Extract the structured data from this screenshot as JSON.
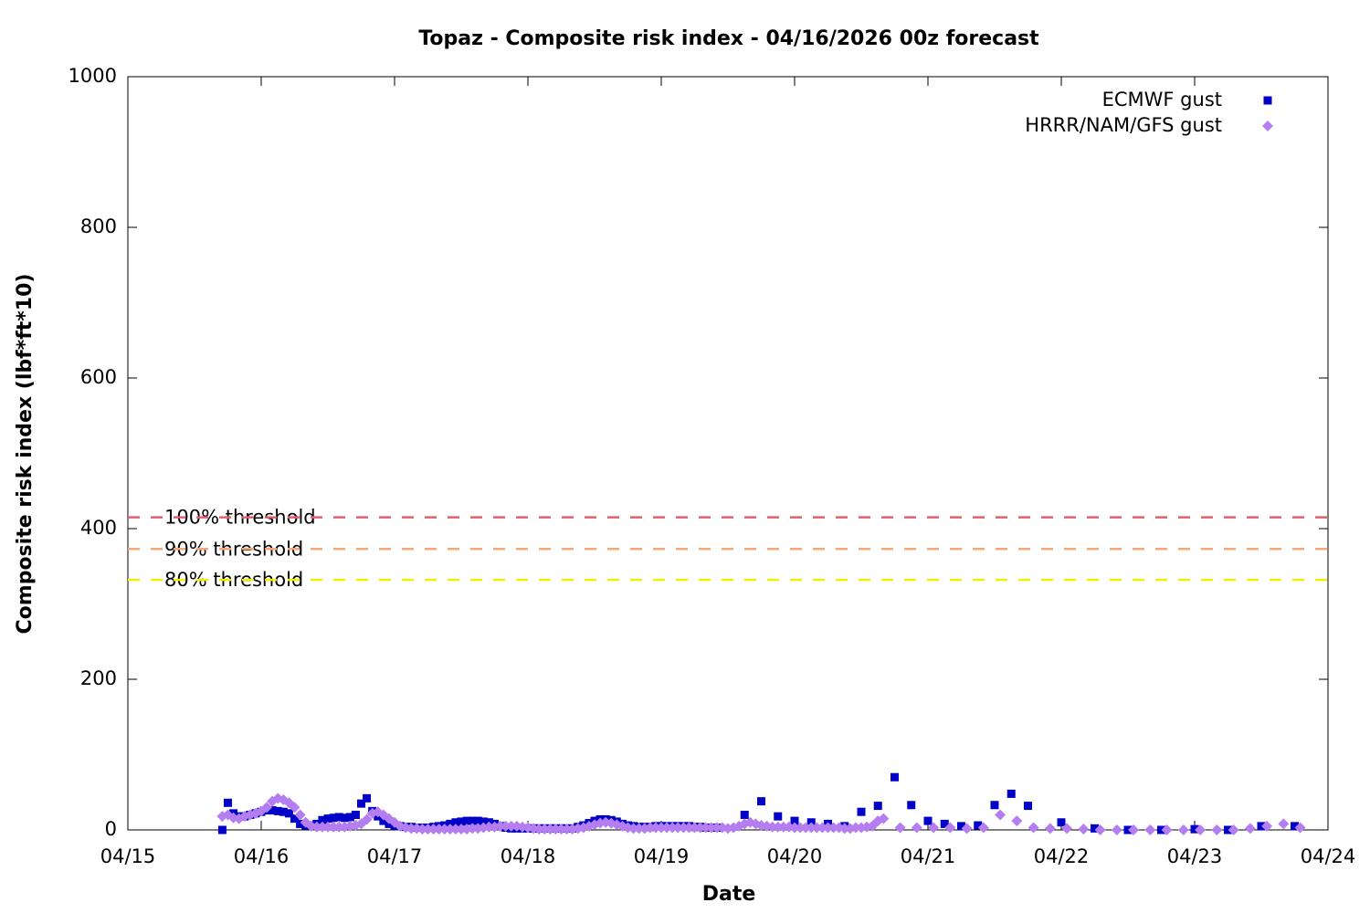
{
  "chart_data": {
    "type": "scatter",
    "title": "Topaz - Composite risk index - 04/16/2026 00z forecast",
    "x_label": "Date",
    "y_label": "Composite risk index (lbf*ft*10)",
    "xlim": [
      0,
      216
    ],
    "xticks": [
      {
        "value": 0,
        "label": "04/15"
      },
      {
        "value": 24,
        "label": "04/16"
      },
      {
        "value": 48,
        "label": "04/17"
      },
      {
        "value": 72,
        "label": "04/18"
      },
      {
        "value": 96,
        "label": "04/19"
      },
      {
        "value": 120,
        "label": "04/20"
      },
      {
        "value": 144,
        "label": "04/21"
      },
      {
        "value": 168,
        "label": "04/22"
      },
      {
        "value": 192,
        "label": "04/23"
      },
      {
        "value": 216,
        "label": "04/24"
      }
    ],
    "ylim": [
      0,
      1000
    ],
    "yticks": [
      0,
      200,
      400,
      600,
      800,
      1000
    ],
    "grid": false,
    "legend": "top-right",
    "thresholds": [
      {
        "label": "100% threshold",
        "value": 415,
        "color": "#e06070"
      },
      {
        "label": "90% threshold",
        "value": 373,
        "color": "#f4a878"
      },
      {
        "label": "80% threshold",
        "value": 332,
        "color": "#f0f000"
      }
    ],
    "series": [
      {
        "name": "ECMWF gust",
        "color": "#0000c8",
        "marker": "square",
        "x": [
          17,
          18,
          19,
          20,
          21,
          22,
          23,
          24,
          25,
          26,
          27,
          28,
          29,
          30,
          31,
          32,
          33,
          34,
          35,
          36,
          37,
          38,
          39,
          40,
          41,
          42,
          43,
          44,
          45,
          46,
          47,
          48,
          49,
          50,
          51,
          52,
          53,
          54,
          55,
          56,
          57,
          58,
          59,
          60,
          61,
          62,
          63,
          64,
          65,
          66,
          67,
          68,
          69,
          70,
          71,
          72,
          73,
          74,
          75,
          76,
          77,
          78,
          79,
          80,
          81,
          82,
          83,
          84,
          85,
          86,
          87,
          88,
          89,
          90,
          91,
          92,
          93,
          94,
          95,
          96,
          97,
          98,
          99,
          100,
          101,
          102,
          103,
          104,
          105,
          106,
          111,
          114,
          117,
          120,
          123,
          126,
          129,
          132,
          135,
          138,
          141,
          144,
          147,
          150,
          153,
          156,
          159,
          162,
          168,
          174,
          180,
          186,
          192,
          198,
          204,
          210
        ],
        "values": [
          0,
          36,
          22,
          18,
          18,
          20,
          22,
          24,
          26,
          26,
          25,
          24,
          22,
          15,
          8,
          6,
          6,
          8,
          13,
          15,
          16,
          17,
          16,
          17,
          20,
          35,
          42,
          25,
          18,
          12,
          8,
          6,
          5,
          4,
          4,
          3,
          3,
          3,
          4,
          5,
          6,
          8,
          10,
          11,
          12,
          12,
          12,
          11,
          10,
          8,
          5,
          3,
          2,
          2,
          2,
          2,
          2,
          2,
          2,
          2,
          2,
          2,
          2,
          2,
          4,
          6,
          9,
          12,
          14,
          14,
          13,
          11,
          8,
          6,
          5,
          4,
          4,
          4,
          5,
          5,
          5,
          5,
          5,
          5,
          5,
          4,
          4,
          3,
          3,
          3,
          20,
          38,
          18,
          12,
          10,
          8,
          5,
          24,
          32,
          70,
          33,
          12,
          8,
          5,
          6,
          33,
          48,
          32,
          10,
          2,
          0,
          0,
          1,
          0,
          5,
          5
        ]
      },
      {
        "name": "HRRR/NAM/GFS gust",
        "color": "#b57ef0",
        "marker": "diamond",
        "x": [
          17,
          18,
          19,
          20,
          21,
          22,
          23,
          24,
          25,
          26,
          27,
          28,
          29,
          30,
          31,
          32,
          33,
          34,
          35,
          36,
          37,
          38,
          39,
          40,
          41,
          42,
          43,
          44,
          45,
          46,
          47,
          48,
          49,
          50,
          51,
          52,
          53,
          54,
          55,
          56,
          57,
          58,
          59,
          60,
          61,
          62,
          63,
          64,
          65,
          66,
          67,
          68,
          69,
          70,
          71,
          72,
          73,
          74,
          75,
          76,
          77,
          78,
          79,
          80,
          81,
          82,
          83,
          84,
          85,
          86,
          87,
          88,
          89,
          90,
          91,
          92,
          93,
          94,
          95,
          96,
          97,
          98,
          99,
          100,
          101,
          102,
          103,
          104,
          105,
          106,
          107,
          108,
          109,
          110,
          111,
          112,
          113,
          114,
          115,
          116,
          117,
          118,
          119,
          120,
          121,
          122,
          123,
          124,
          125,
          126,
          127,
          128,
          129,
          130,
          131,
          132,
          133,
          134,
          135,
          136,
          139,
          142,
          145,
          148,
          151,
          154,
          157,
          160,
          163,
          166,
          169,
          172,
          175,
          178,
          181,
          184,
          187,
          190,
          193,
          196,
          199,
          202,
          205,
          208,
          211
        ],
        "values": [
          18,
          20,
          16,
          15,
          18,
          20,
          22,
          25,
          30,
          38,
          42,
          40,
          36,
          30,
          20,
          10,
          5,
          4,
          4,
          4,
          4,
          4,
          4,
          5,
          6,
          8,
          14,
          22,
          24,
          20,
          15,
          10,
          5,
          3,
          2,
          2,
          1,
          1,
          1,
          1,
          1,
          1,
          1,
          1,
          1,
          2,
          2,
          3,
          4,
          4,
          5,
          5,
          5,
          5,
          4,
          3,
          2,
          1,
          1,
          1,
          1,
          1,
          1,
          1,
          2,
          3,
          5,
          7,
          9,
          10,
          9,
          7,
          5,
          3,
          2,
          2,
          2,
          3,
          3,
          3,
          3,
          3,
          3,
          3,
          3,
          3,
          3,
          3,
          3,
          3,
          3,
          2,
          3,
          5,
          8,
          10,
          8,
          6,
          5,
          4,
          4,
          4,
          4,
          3,
          3,
          3,
          3,
          3,
          3,
          3,
          3,
          3,
          2,
          2,
          3,
          3,
          4,
          5,
          12,
          15,
          3,
          3,
          3,
          3,
          2,
          3,
          20,
          12,
          3,
          2,
          2,
          1,
          0,
          0,
          0,
          0,
          0,
          0,
          0,
          0,
          0,
          2,
          5,
          8,
          3
        ]
      }
    ]
  }
}
